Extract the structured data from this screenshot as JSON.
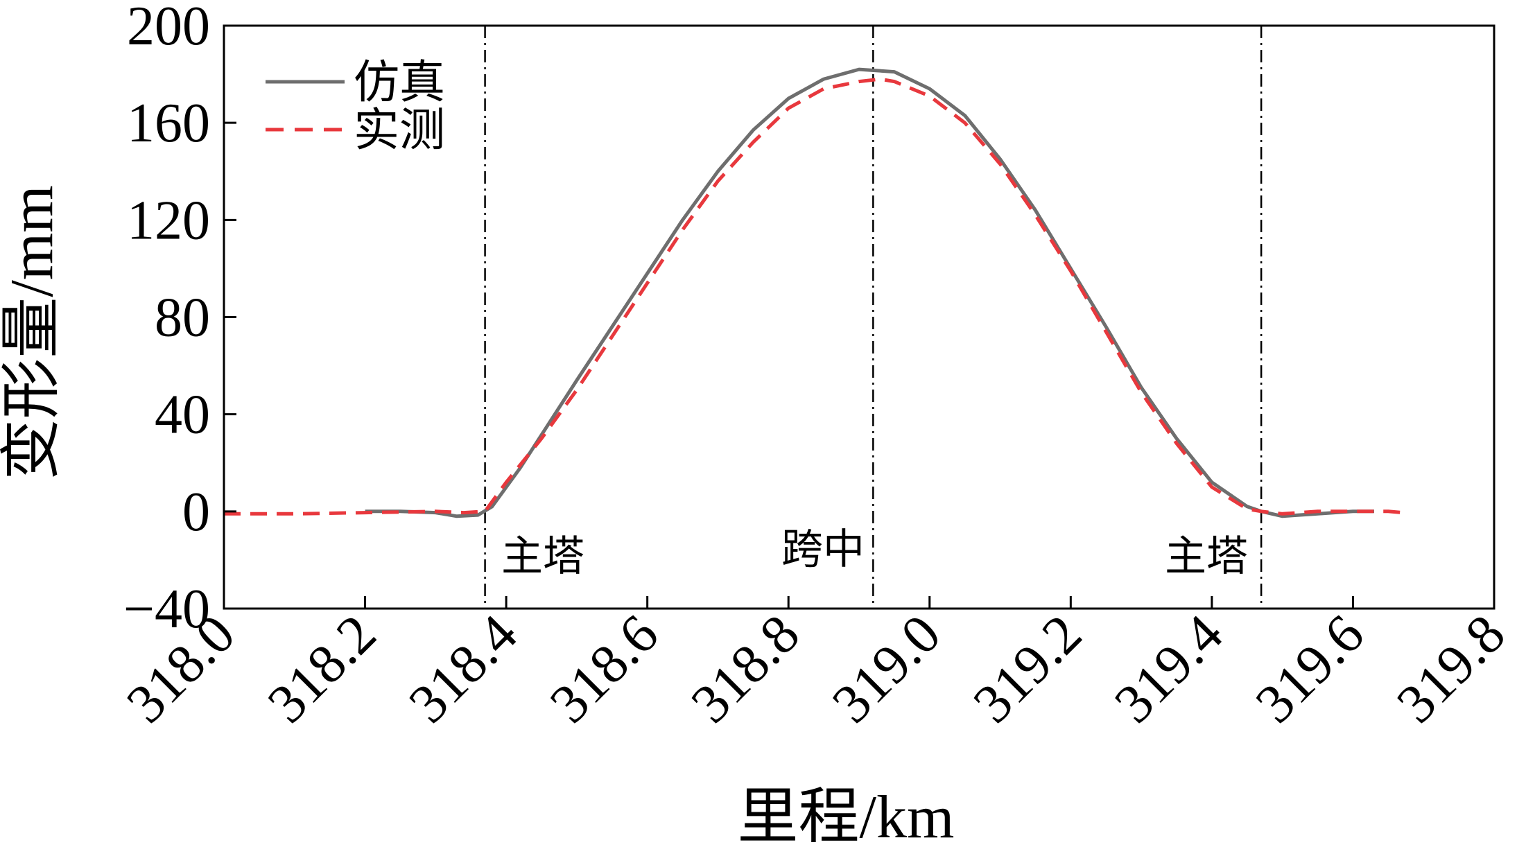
{
  "chart_data": {
    "type": "line",
    "xlabel": "里程/km",
    "ylabel": "变形量/mm",
    "xlim": [
      318.0,
      319.8
    ],
    "ylim": [
      -40,
      200
    ],
    "xticks": [
      "318.0",
      "318.2",
      "318.4",
      "318.6",
      "318.8",
      "319.0",
      "319.2",
      "319.4",
      "319.6",
      "319.8"
    ],
    "yticks": [
      "-40",
      "0",
      "40",
      "80",
      "120",
      "160",
      "200"
    ],
    "grid": false,
    "legend_position": "top-left",
    "series": [
      {
        "name": "仿真",
        "color": "#6e6e6e",
        "style": "solid",
        "x": [
          318.2,
          318.25,
          318.3,
          318.33,
          318.36,
          318.38,
          318.42,
          318.46,
          318.5,
          318.55,
          318.6,
          318.65,
          318.7,
          318.75,
          318.8,
          318.85,
          318.9,
          318.95,
          319.0,
          319.05,
          319.1,
          319.15,
          319.2,
          319.25,
          319.3,
          319.35,
          319.4,
          319.45,
          319.47,
          319.5,
          319.55,
          319.6,
          319.63
        ],
        "y": [
          0,
          0,
          -0.5,
          -2,
          -1.5,
          2,
          18,
          36,
          54,
          76,
          98,
          120,
          140,
          157,
          170,
          178,
          182,
          181,
          174,
          163,
          145,
          124,
          100,
          76,
          51,
          30,
          12,
          2,
          0,
          -2,
          -1,
          0,
          0
        ]
      },
      {
        "name": "实测",
        "color": "#e8383d",
        "style": "dashed",
        "x": [
          318.0,
          318.1,
          318.2,
          318.3,
          318.34,
          318.37,
          318.4,
          318.45,
          318.5,
          318.55,
          318.6,
          318.65,
          318.7,
          318.75,
          318.8,
          318.85,
          318.9,
          318.93,
          318.95,
          319.0,
          319.05,
          319.1,
          319.15,
          319.2,
          319.25,
          319.3,
          319.35,
          319.4,
          319.45,
          319.47,
          319.5,
          319.55,
          319.6,
          319.65,
          319.67
        ],
        "y": [
          -1,
          -1,
          -0.5,
          0,
          -0.5,
          0,
          12,
          30,
          50,
          72,
          94,
          116,
          136,
          152,
          166,
          174,
          177,
          178,
          177,
          171,
          160,
          143,
          122,
          99,
          74,
          49,
          28,
          10,
          1,
          0,
          -1,
          0,
          0,
          0,
          -0.5
        ]
      }
    ],
    "reference_lines": [
      {
        "x": 318.37,
        "label": "主塔"
      },
      {
        "x": 318.92,
        "label": "跨中"
      },
      {
        "x": 319.47,
        "label": "主塔"
      }
    ]
  }
}
